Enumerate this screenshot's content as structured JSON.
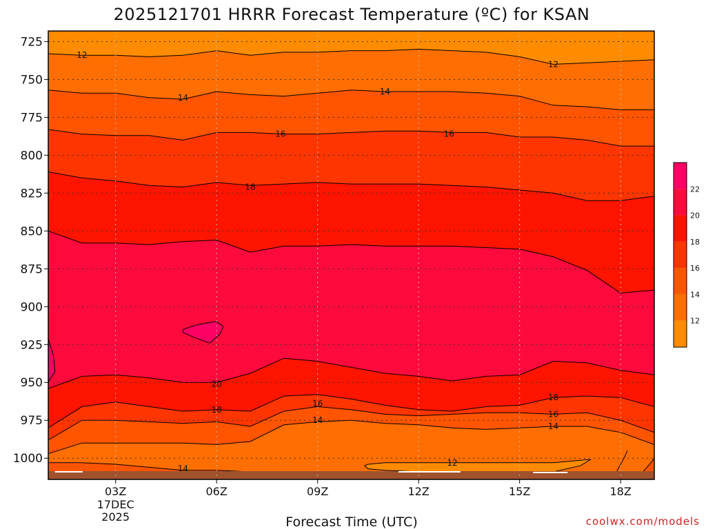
{
  "title": "2025121701 HRRR Forecast Temperature (ºC) for KSAN",
  "credit": "coolwx.com/models",
  "colors": {
    "lt12": "#ff8c00",
    "c12_14": "#ff6e00",
    "c14_16": "#ff5400",
    "c16_18": "#ff3500",
    "c18_20": "#ff1400",
    "c20_22": "#ff0a3c",
    "c22_24": "#ff0064",
    "ground": "#a0522d"
  },
  "chart_data": {
    "type": "contour",
    "title": "2025121701 HRRR Forecast Temperature (ºC) for KSAN",
    "xlabel": "Forecast Time (UTC)",
    "ylabel": "",
    "x_unit": "forecast hour (UTC)",
    "xlim": [
      1,
      19
    ],
    "y_unit": "hPa",
    "ylim": [
      1014,
      718
    ],
    "y_ticks": [
      725,
      750,
      775,
      800,
      825,
      850,
      875,
      900,
      925,
      950,
      975,
      1000
    ],
    "x_ticks": [
      {
        "hour": 3,
        "label": "03Z",
        "sublabels": [
          "17DEC",
          "2025"
        ]
      },
      {
        "hour": 6,
        "label": "06Z"
      },
      {
        "hour": 9,
        "label": "09Z"
      },
      {
        "hour": 12,
        "label": "12Z"
      },
      {
        "hour": 15,
        "label": "15Z"
      },
      {
        "hour": 18,
        "label": "18Z"
      }
    ],
    "ground_pressure_hpa": 1014,
    "contour_levels": [
      12,
      14,
      16,
      18,
      20,
      22
    ],
    "colorbar": {
      "min": 10,
      "max": 24,
      "tick_labels": [
        12,
        14,
        16,
        18,
        20,
        22
      ]
    },
    "contours": [
      {
        "level": 12,
        "x": [
          1,
          2,
          3,
          4,
          5,
          6,
          7,
          8,
          9,
          10,
          11,
          12,
          13,
          14,
          15,
          16,
          17,
          18,
          19
        ],
        "p": [
          733,
          734,
          734,
          735,
          734,
          731,
          734,
          732,
          732,
          731,
          731,
          730,
          731,
          732,
          735,
          740,
          739,
          738,
          737
        ]
      },
      {
        "level": 14,
        "x": [
          1,
          2,
          3,
          4,
          5,
          6,
          7,
          8,
          9,
          10,
          11,
          12,
          13,
          14,
          15,
          16,
          17,
          18,
          19
        ],
        "p": [
          757,
          759,
          759,
          762,
          763,
          758,
          760,
          761,
          759,
          757,
          758,
          758,
          758,
          759,
          761,
          767,
          768,
          770,
          770
        ]
      },
      {
        "level": 16,
        "x": [
          1,
          2,
          3,
          4,
          5,
          6,
          7,
          8,
          9,
          10,
          11,
          12,
          13,
          14,
          15,
          16,
          17,
          18,
          19
        ],
        "p": [
          783,
          786,
          787,
          787,
          790,
          785,
          785,
          786,
          786,
          785,
          784,
          784,
          785,
          785,
          788,
          788,
          790,
          794,
          794
        ]
      },
      {
        "level": 18,
        "x": [
          1,
          2,
          3,
          4,
          5,
          6,
          7,
          8,
          9,
          10,
          11,
          12,
          13,
          14,
          15,
          16,
          17,
          18,
          19
        ],
        "p": [
          811,
          815,
          817,
          820,
          821,
          818,
          820,
          819,
          818,
          819,
          819,
          819,
          820,
          821,
          823,
          825,
          830,
          830,
          827
        ]
      },
      {
        "level": 20,
        "x": [
          1,
          2,
          3,
          4,
          5,
          6,
          7,
          8,
          9,
          10,
          11,
          12,
          13,
          14,
          15,
          16,
          17,
          18,
          19
        ],
        "p": [
          850,
          858,
          858,
          859,
          857,
          856,
          864,
          860,
          860,
          859,
          860,
          860,
          860,
          861,
          862,
          867,
          876,
          891,
          889
        ]
      },
      {
        "level": 22,
        "x": [
          5.0,
          5.4,
          5.9,
          6.0,
          6.2,
          6.1,
          5.8,
          5.3,
          5.0
        ],
        "p": [
          915,
          912,
          910,
          910,
          913,
          918,
          924,
          920,
          917
        ],
        "closed": true
      },
      {
        "level": 20,
        "x": [
          1,
          2,
          3,
          4,
          5,
          6,
          7,
          8,
          9,
          10,
          11,
          12,
          13,
          14,
          15,
          16,
          17,
          18,
          19
        ],
        "p": [
          954,
          946,
          945,
          947,
          950,
          950,
          944,
          934,
          936,
          940,
          944,
          946,
          949,
          946,
          945,
          936,
          937,
          942,
          945
        ]
      },
      {
        "level": 18,
        "x": [
          1,
          2,
          3,
          4,
          5,
          6,
          7,
          8,
          9,
          10,
          11,
          12,
          13,
          14,
          15,
          16,
          17,
          18,
          19
        ],
        "p": [
          980,
          966,
          963,
          966,
          969,
          968,
          969,
          959,
          958,
          961,
          965,
          968,
          969,
          966,
          965,
          960,
          959,
          960,
          966
        ]
      },
      {
        "level": 16,
        "x": [
          1,
          2,
          3,
          4,
          5,
          6,
          7,
          8,
          9,
          10,
          11,
          12,
          13,
          14,
          15,
          16,
          17,
          18,
          19
        ],
        "p": [
          988,
          975,
          975,
          976,
          977,
          976,
          979,
          969,
          966,
          968,
          971,
          972,
          971,
          970,
          970,
          971,
          970,
          975,
          983
        ]
      },
      {
        "level": 14,
        "x": [
          1,
          2,
          3,
          4,
          5,
          6,
          7,
          8,
          9,
          10,
          11,
          12,
          13,
          14,
          15,
          16,
          17,
          18,
          19
        ],
        "p": [
          997,
          990,
          990,
          990,
          990,
          991,
          989,
          978,
          976,
          975,
          977,
          978,
          980,
          981,
          980,
          979,
          979,
          983,
          991
        ]
      },
      {
        "level": 12,
        "x": [
          10.5,
          11,
          12,
          13,
          14,
          15,
          16,
          17,
          17.1,
          16.8,
          16,
          15,
          14,
          13,
          12,
          11,
          10.5,
          10.4
        ],
        "p": [
          1004,
          1003,
          1003,
          1003,
          1003,
          1003,
          1003,
          1001,
          1001,
          1005,
          1009,
          1010,
          1010,
          1010,
          1009,
          1008,
          1007,
          1005
        ],
        "closed": true
      },
      {
        "level": 14,
        "x": [
          1,
          2,
          3,
          4,
          5,
          6,
          7,
          7.4
        ],
        "p": [
          1003,
          1003,
          1004,
          1006,
          1008,
          1008,
          1009,
          1014
        ]
      },
      {
        "level": 14,
        "x": [
          18.2,
          18.1,
          18.0,
          17.9,
          17.8
        ],
        "p": [
          995,
          1000,
          1004,
          1008,
          1014
        ]
      },
      {
        "level": 14,
        "x": [
          19.0,
          18.9,
          18.7,
          18.5
        ],
        "p": [
          1000,
          1003,
          1008,
          1014
        ]
      }
    ],
    "contour_labels": [
      {
        "text": "12",
        "x": 2.0,
        "p": 734
      },
      {
        "text": "12",
        "x": 16.0,
        "p": 740
      },
      {
        "text": "14",
        "x": 5.0,
        "p": 762
      },
      {
        "text": "14",
        "x": 11.0,
        "p": 758
      },
      {
        "text": "16",
        "x": 7.9,
        "p": 786
      },
      {
        "text": "16",
        "x": 12.9,
        "p": 786
      },
      {
        "text": "18",
        "x": 7.0,
        "p": 821
      },
      {
        "text": "20",
        "x": 6.0,
        "p": 951
      },
      {
        "text": "18",
        "x": 6.0,
        "p": 968
      },
      {
        "text": "16",
        "x": 9.0,
        "p": 964
      },
      {
        "text": "14",
        "x": 9.0,
        "p": 975
      },
      {
        "text": "18",
        "x": 16.0,
        "p": 960
      },
      {
        "text": "16",
        "x": 16.0,
        "p": 971
      },
      {
        "text": "14",
        "x": 16.0,
        "p": 979
      },
      {
        "text": "12",
        "x": 13.0,
        "p": 1003
      },
      {
        "text": "14",
        "x": 5.0,
        "p": 1007
      }
    ]
  }
}
